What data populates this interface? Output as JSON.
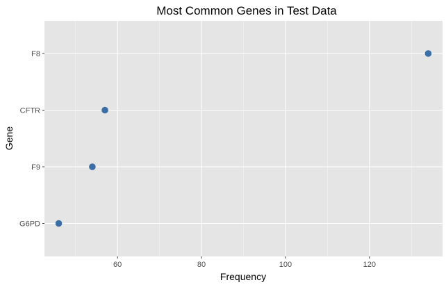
{
  "chart_data": {
    "type": "scatter",
    "title": "Most Common Genes in Test Data",
    "xlabel": "Frequency",
    "ylabel": "Gene",
    "categories": [
      "G6PD",
      "F9",
      "CFTR",
      "F8"
    ],
    "values": [
      46,
      54,
      57,
      134
    ],
    "xlim": [
      42.6,
      137.4
    ],
    "x_ticks": [
      60,
      80,
      100,
      120
    ],
    "x_minor": [
      50,
      70,
      90,
      110,
      130
    ],
    "grid": true,
    "point_color": "#3a6ea5",
    "panel_color": "#e5e5e5",
    "grid_color": "#ffffff"
  }
}
